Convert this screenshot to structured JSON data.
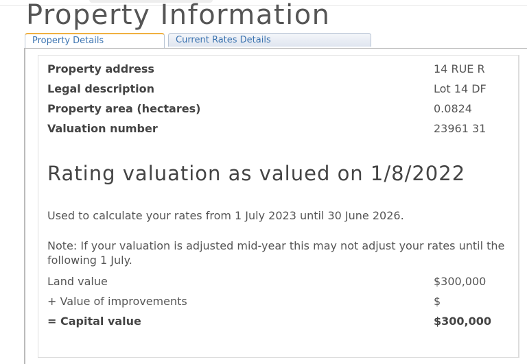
{
  "page_title": "Property Information",
  "tabs": [
    {
      "label": "Property Details",
      "active": true
    },
    {
      "label": "Current Rates Details",
      "active": false
    }
  ],
  "details": [
    {
      "label": "Property address",
      "value": "14 RUE R"
    },
    {
      "label": "Legal description",
      "value": "Lot 14 DF"
    },
    {
      "label": "Property area (hectares)",
      "value": "0.0824"
    },
    {
      "label": "Valuation number",
      "value": "23961 31"
    }
  ],
  "valuation": {
    "heading": "Rating valuation as valued on 1/8/2022",
    "used_text": "Used to calculate your rates from 1 July 2023 until 30 June 2026.",
    "note_text": "Note: If your valuation is adjusted mid-year this may not adjust your rates until the following 1 July.",
    "rows": [
      {
        "label": "Land value",
        "value": "$300,000"
      },
      {
        "label": "+ Value of improvements",
        "value": "$"
      },
      {
        "label": "= Capital value",
        "value": "$300,000"
      }
    ]
  }
}
